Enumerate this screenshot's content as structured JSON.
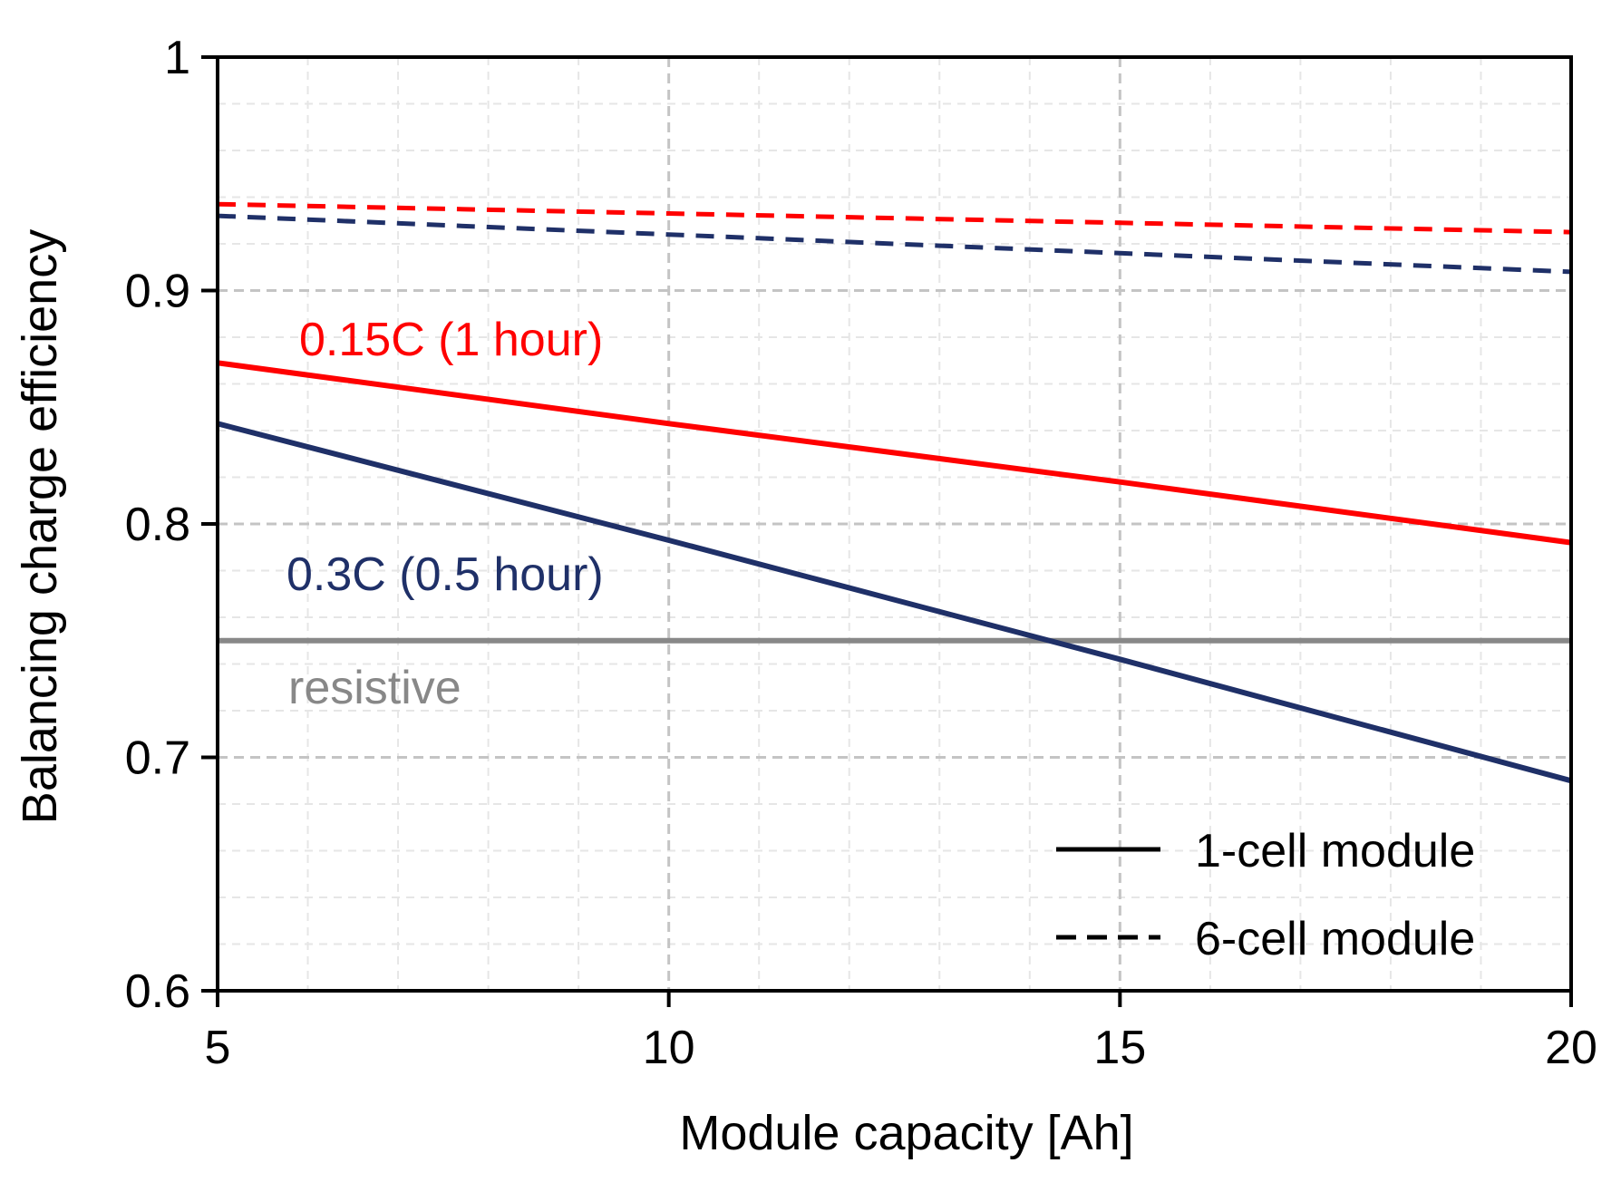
{
  "chart_data": {
    "type": "line",
    "title": "",
    "xlabel": "Module capacity [Ah]",
    "ylabel": "Balancing charge efficiency",
    "xlim": [
      5,
      20
    ],
    "ylim": [
      0.6,
      1.0
    ],
    "x_ticks": [
      5,
      10,
      15,
      20
    ],
    "x_tick_labels": [
      "5",
      "10",
      "15",
      "20"
    ],
    "y_ticks": [
      0.6,
      0.7,
      0.8,
      0.9,
      1.0
    ],
    "y_tick_labels": [
      "0.6",
      "0.7",
      "0.8",
      "0.9",
      "1"
    ],
    "grid": true,
    "series": [
      {
        "name": "0.15C (1 hour), 1-cell module",
        "color": "#ff0000",
        "style": "solid",
        "x": [
          5,
          10,
          15,
          20
        ],
        "values": [
          0.869,
          0.843,
          0.818,
          0.792
        ]
      },
      {
        "name": "0.3C (0.5 hour), 1-cell module",
        "color": "#1f3068",
        "style": "solid",
        "x": [
          5,
          10,
          15,
          20
        ],
        "values": [
          0.843,
          0.793,
          0.742,
          0.69
        ]
      },
      {
        "name": "0.15C (1 hour), 6-cell module",
        "color": "#ff0000",
        "style": "dashed",
        "x": [
          5,
          10,
          15,
          20
        ],
        "values": [
          0.937,
          0.933,
          0.929,
          0.925
        ]
      },
      {
        "name": "0.3C (0.5 hour), 6-cell module",
        "color": "#1f3068",
        "style": "dashed",
        "x": [
          5,
          10,
          15,
          20
        ],
        "values": [
          0.932,
          0.924,
          0.916,
          0.908
        ]
      },
      {
        "name": "resistive",
        "color": "#888888",
        "style": "solid",
        "x": [
          5,
          20
        ],
        "values": [
          0.75,
          0.75
        ]
      }
    ],
    "annotations": [
      {
        "text": "0.15C (1 hour)",
        "color": "#ff0000"
      },
      {
        "text": "0.3C (0.5 hour)",
        "color": "#1f3068"
      },
      {
        "text": "resistive",
        "color": "#888888"
      }
    ],
    "legend": {
      "position": "bottom-right",
      "entries": [
        {
          "label": "1-cell module",
          "style": "solid"
        },
        {
          "label": "6-cell module",
          "style": "dashed"
        }
      ]
    }
  }
}
